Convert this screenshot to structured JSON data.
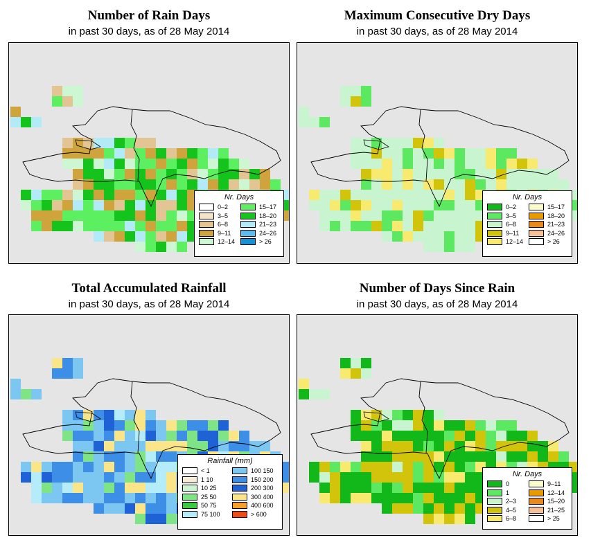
{
  "panels": [
    {
      "title": "Number of Rain Days",
      "subtitle": "in past 30 days, as of  28 May 2014",
      "legend": {
        "title": "Nr. Days",
        "items": [
          {
            "label": "0–2",
            "color": "#ffffff"
          },
          {
            "label": "3–5",
            "color": "#f3e4c8"
          },
          {
            "label": "6–8",
            "color": "#e2c592"
          },
          {
            "label": "9–11",
            "color": "#cfa43c"
          },
          {
            "label": "12–14",
            "color": "#ccf7d2"
          },
          {
            "label": "15–17",
            "color": "#5cf060"
          },
          {
            "label": "18–20",
            "color": "#14c41c"
          },
          {
            "label": "21–23",
            "color": "#b2eaf8"
          },
          {
            "label": "24–26",
            "color": "#5cbcf0"
          },
          {
            "label": "> 26",
            "color": "#1690d6"
          }
        ]
      }
    },
    {
      "title": "Maximum Consecutive Dry Days",
      "subtitle": "in past 30 days, as of  28 May 2014",
      "legend": {
        "title": "Nr. Days",
        "items": [
          {
            "label": "0–2",
            "color": "#12b81a"
          },
          {
            "label": "3–5",
            "color": "#5ce860"
          },
          {
            "label": "6–8",
            "color": "#c8f5d0"
          },
          {
            "label": "9–11",
            "color": "#d2c40a"
          },
          {
            "label": "12–14",
            "color": "#f8ea6e"
          },
          {
            "label": "15–17",
            "color": "#fcfcc8"
          },
          {
            "label": "18–20",
            "color": "#e69a00"
          },
          {
            "label": "21–23",
            "color": "#e68a1e"
          },
          {
            "label": "24–26",
            "color": "#f8be94"
          },
          {
            "label": "> 26",
            "color": "#ffffff"
          }
        ]
      }
    },
    {
      "title": "Total Accumulated Rainfall",
      "subtitle": "in past 30 days, as of  28 May 2014",
      "legend": {
        "title": "Rainfall (mm)",
        "items": [
          {
            "label": "< 1",
            "color": "#ffffff"
          },
          {
            "label": "1   10",
            "color": "#f8ecd6"
          },
          {
            "label": "10   25",
            "color": "#c8f5d0"
          },
          {
            "label": "25   50",
            "color": "#7ee486"
          },
          {
            "label": "50   75",
            "color": "#3cc840"
          },
          {
            "label": "75   100",
            "color": "#b4ecfa"
          },
          {
            "label": "100   150",
            "color": "#7cc6f2"
          },
          {
            "label": "150   200",
            "color": "#3c8ee6"
          },
          {
            "label": "200   300",
            "color": "#1e62d6"
          },
          {
            "label": "300   400",
            "color": "#fae688"
          },
          {
            "label": "400   600",
            "color": "#f8a02a"
          },
          {
            "label": "> 600",
            "color": "#f04a14"
          }
        ]
      }
    },
    {
      "title": "Number of Days Since Rain",
      "subtitle": "in past 30 days, as of  28 May 2014",
      "legend": {
        "title": "Nr. Days",
        "items": [
          {
            "label": "0",
            "color": "#12b81a"
          },
          {
            "label": "1",
            "color": "#5ce860"
          },
          {
            "label": "2–3",
            "color": "#c8f5d0"
          },
          {
            "label": "4–5",
            "color": "#d2c40a"
          },
          {
            "label": "6–8",
            "color": "#f8ea6e"
          },
          {
            "label": "9–11",
            "color": "#fcfcc8"
          },
          {
            "label": "12–14",
            "color": "#e69a00"
          },
          {
            "label": "15–20",
            "color": "#e68a1e"
          },
          {
            "label": "21–25",
            "color": "#f8be94"
          },
          {
            "label": "> 25",
            "color": "#ffffff"
          }
        ]
      }
    }
  ]
}
